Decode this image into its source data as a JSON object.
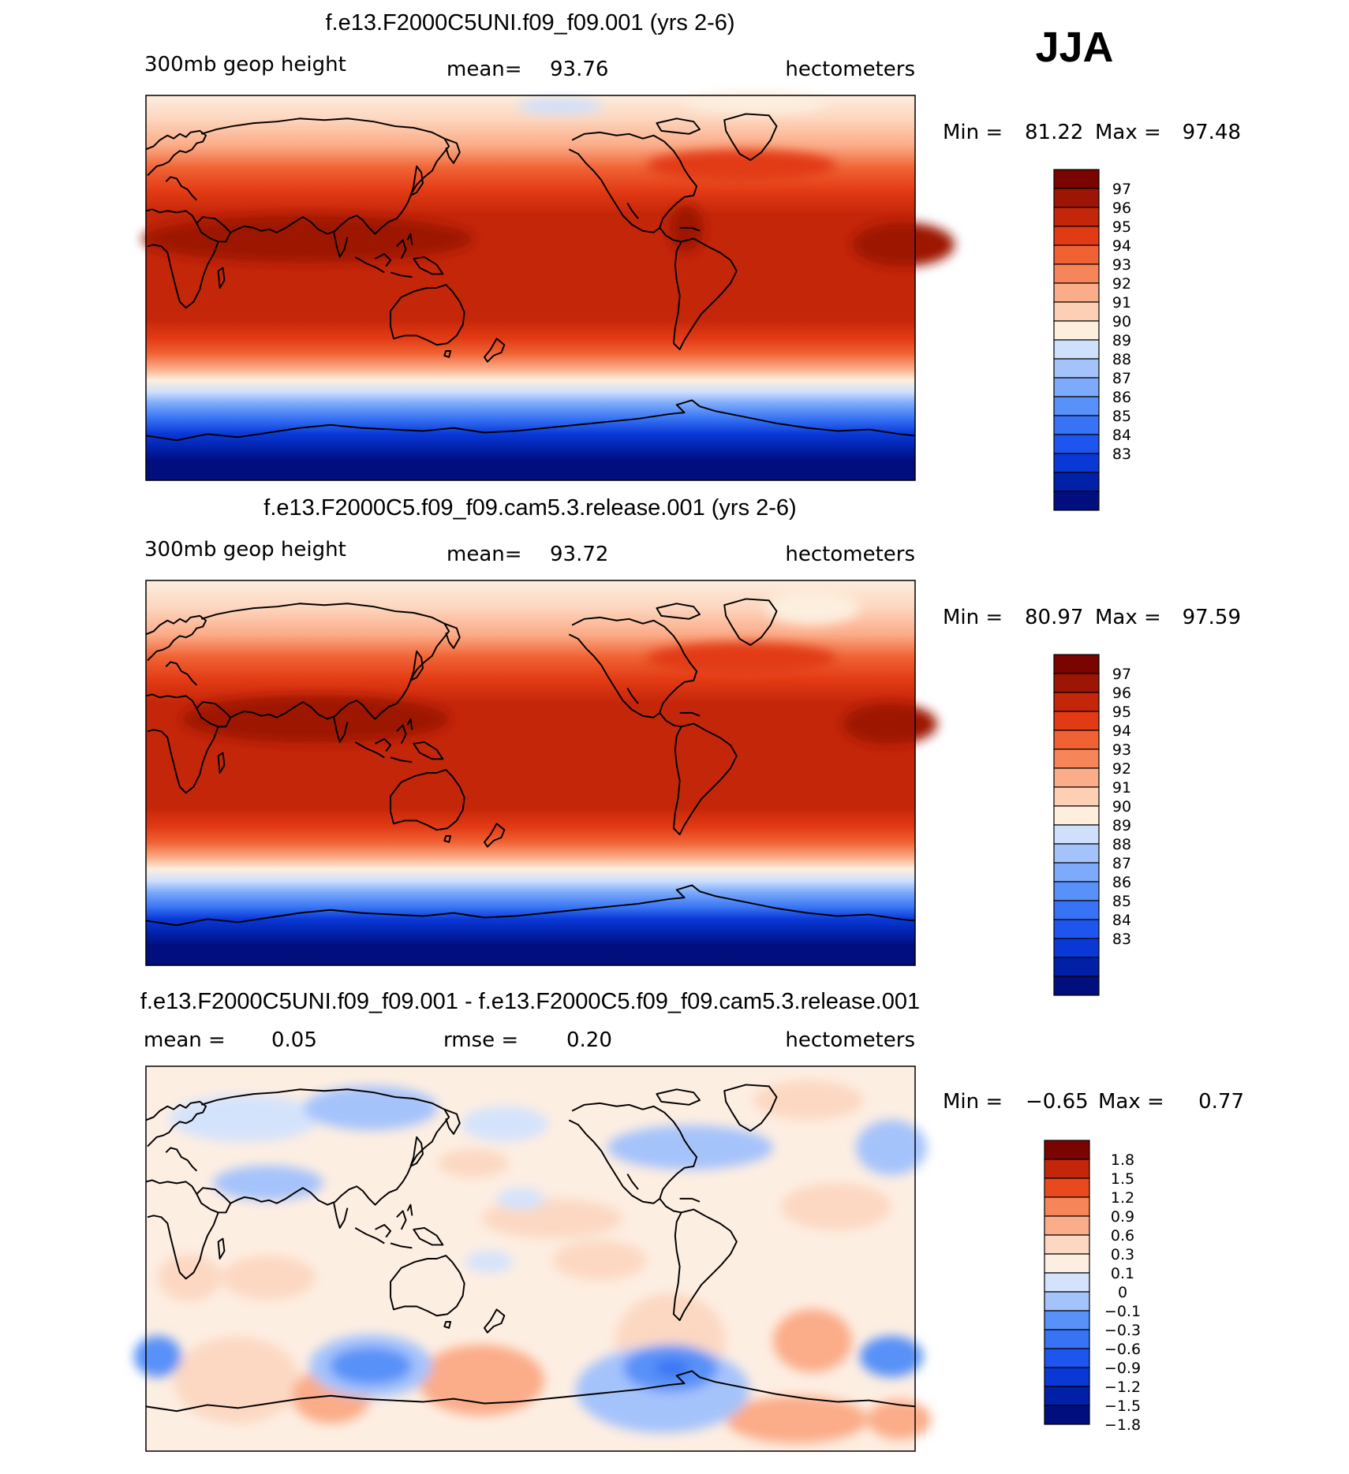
{
  "season": "JJA",
  "colors": {
    "full": [
      "#000e7e",
      "#0020a7",
      "#0a38d6",
      "#1e55ee",
      "#3773f4",
      "#5891f8",
      "#7daafa",
      "#a5c3fb",
      "#cfe0fc",
      "#fdeede",
      "#fdd0b6",
      "#fbac88",
      "#f7855a",
      "#f06233",
      "#e23a14",
      "#c42609",
      "#9d1505",
      "#7a0500"
    ],
    "diff": [
      "#000e7e",
      "#0020a7",
      "#0a38d6",
      "#1e55ee",
      "#3773f4",
      "#5891f8",
      "#a5c3fb",
      "#d4e3fc",
      "#fdeee2",
      "#fcd8c2",
      "#fbac88",
      "#f7855a",
      "#e84a1e",
      "#c42609",
      "#7a0500"
    ]
  },
  "chart_data": [
    {
      "type": "heatmap",
      "title": "f.e13.F2000C5UNI.f09_f09.001 (yrs 2-6)",
      "variable": "300mb  geop  height",
      "mean_label": "mean=",
      "mean": "93.76",
      "units": "hectometers",
      "min_label": "Min  =",
      "min": "81.22",
      "max_label": "Max  =",
      "max": "97.48",
      "colorbar_ticks": [
        "97",
        "96",
        "95",
        "94",
        "93",
        "92",
        "91",
        "90",
        "89",
        "88",
        "87",
        "86",
        "85",
        "84",
        "83"
      ]
    },
    {
      "type": "heatmap",
      "title": "f.e13.F2000C5.f09_f09.cam5.3.release.001 (yrs 2-6)",
      "variable": "300mb  geop  height",
      "mean_label": "mean=",
      "mean": "93.72",
      "units": "hectometers",
      "min_label": "Min  =",
      "min": "80.97",
      "max_label": "Max  =",
      "max": "97.59",
      "colorbar_ticks": [
        "97",
        "96",
        "95",
        "94",
        "93",
        "92",
        "91",
        "90",
        "89",
        "88",
        "87",
        "86",
        "85",
        "84",
        "83"
      ]
    },
    {
      "type": "heatmap",
      "title": "f.e13.F2000C5UNI.f09_f09.001 - f.e13.F2000C5.f09_f09.cam5.3.release.001",
      "mean_label": "mean  =",
      "mean": "0.05",
      "rmse_label": "rmse  =",
      "rmse": "0.20",
      "units": "hectometers",
      "min_label": "Min  =",
      "min": "−0.65",
      "max_label": "Max  =",
      "max": "0.77",
      "colorbar_ticks": [
        "1.8",
        "1.5",
        "1.2",
        "0.9",
        "0.6",
        "0.3",
        "0.1",
        "0",
        "−0.1",
        "−0.3",
        "−0.6",
        "−0.9",
        "−1.2",
        "−1.5",
        "−1.8"
      ]
    }
  ]
}
